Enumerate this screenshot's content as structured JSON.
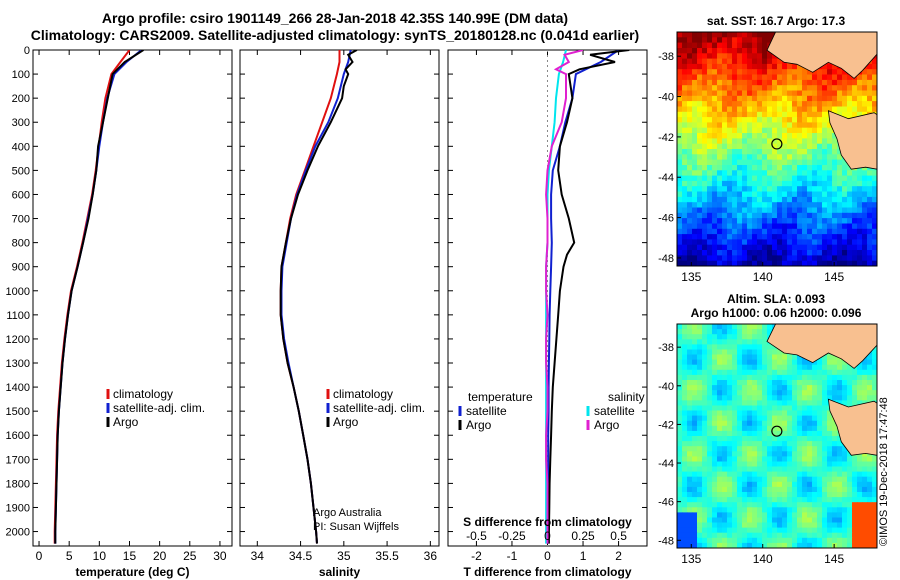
{
  "figure": {
    "title_line1": "Argo profile: csiro 1901149_266 28-Jan-2018 42.35S 140.99E (DM data)",
    "title_line2": "Climatology: CARS2009. Satellite-adjusted climatology: synTS_20180128.nc (0.041d earlier)",
    "sst_title": "sat. SST: 16.7 Argo: 17.3",
    "sla_title1": "Altim. SLA: 0.093",
    "sla_title2": "Argo h1000: 0.06 h2000: 0.096",
    "stamp": "©IMOS 19-Dec-2018 17:47:48",
    "credit_line1": "Argo Australia",
    "credit_line2": "PI: Susan Wijffels"
  },
  "colors": {
    "climatology": "#e01010",
    "satellite": "#1020d0",
    "argo": "#000000",
    "satellite_salinity": "#00e5ee",
    "argo_salinity": "#e020d0",
    "land": "#f8c090"
  },
  "chart_data": [
    {
      "type": "line",
      "name": "temperature_profile",
      "xlabel": "temperature (deg C)",
      "ylabel": "",
      "xlim": [
        -1,
        32
      ],
      "ylim": [
        2060,
        0
      ],
      "xticks": [
        0,
        5,
        10,
        15,
        20,
        25,
        30
      ],
      "yticks": [
        0,
        100,
        200,
        300,
        400,
        500,
        600,
        700,
        800,
        900,
        1000,
        1100,
        1200,
        1300,
        1400,
        1500,
        1600,
        1700,
        1800,
        1900,
        2000
      ],
      "legend": [
        "climatology",
        "satellite-adj. clim.",
        "Argo"
      ],
      "legend_position": "lower-middle",
      "series": [
        {
          "name": "climatology",
          "depth": [
            0,
            50,
            100,
            200,
            300,
            400,
            500,
            600,
            700,
            800,
            900,
            1000,
            1100,
            1200,
            1300,
            1400,
            1500,
            1600,
            1700,
            1800,
            1900,
            2000,
            2050
          ],
          "values": [
            15.0,
            13.5,
            12.0,
            11.0,
            10.4,
            9.9,
            9.4,
            8.8,
            8.0,
            7.2,
            6.3,
            5.3,
            4.7,
            4.2,
            3.8,
            3.5,
            3.2,
            3.0,
            2.9,
            2.8,
            2.7,
            2.6,
            2.6
          ]
        },
        {
          "name": "satellite-adj. clim.",
          "depth": [
            0,
            50,
            100,
            200,
            300,
            400,
            500,
            600,
            700,
            800,
            900,
            1000,
            1100,
            1200,
            1300,
            1400,
            1500,
            1600,
            1700,
            1800,
            1900,
            2000,
            2050
          ],
          "values": [
            17.0,
            14.5,
            12.5,
            11.3,
            10.6,
            10.0,
            9.5,
            8.9,
            8.1,
            7.3,
            6.4,
            5.4,
            4.8,
            4.3,
            3.9,
            3.6,
            3.3,
            3.1,
            3.0,
            2.9,
            2.8,
            2.7,
            2.7
          ]
        },
        {
          "name": "Argo",
          "depth": [
            0,
            50,
            100,
            200,
            300,
            400,
            500,
            600,
            700,
            800,
            900,
            1000,
            1100,
            1200,
            1300,
            1400,
            1500,
            1600,
            1700,
            1800,
            1900,
            2000,
            2050
          ],
          "values": [
            17.3,
            14.2,
            12.2,
            11.4,
            10.6,
            9.8,
            9.5,
            8.9,
            8.2,
            7.3,
            6.4,
            5.4,
            4.8,
            4.3,
            3.9,
            3.6,
            3.3,
            3.1,
            3.0,
            2.9,
            2.8,
            2.7,
            2.7
          ]
        }
      ]
    },
    {
      "type": "line",
      "name": "salinity_profile",
      "xlabel": "salinity",
      "ylabel": "",
      "xlim": [
        33.8,
        36.1
      ],
      "ylim": [
        2060,
        0
      ],
      "xticks": [
        34,
        34.5,
        35,
        35.5,
        36
      ],
      "legend": [
        "climatology",
        "satellite-adj. clim.",
        "Argo"
      ],
      "legend_position": "lower-middle",
      "series": [
        {
          "name": "climatology",
          "depth": [
            0,
            50,
            100,
            200,
            300,
            400,
            500,
            600,
            700,
            800,
            900,
            1000,
            1100,
            1200,
            1300,
            1400,
            1500,
            1600,
            1700,
            1800,
            1900,
            2000,
            2050
          ],
          "values": [
            34.95,
            34.95,
            34.92,
            34.85,
            34.75,
            34.65,
            34.55,
            34.45,
            34.38,
            34.33,
            34.28,
            34.27,
            34.27,
            34.3,
            34.35,
            34.42,
            34.48,
            34.53,
            34.58,
            34.62,
            34.65,
            34.68,
            34.69
          ]
        },
        {
          "name": "satellite-adj. clim.",
          "depth": [
            0,
            50,
            100,
            200,
            300,
            400,
            500,
            600,
            700,
            800,
            900,
            1000,
            1100,
            1200,
            1300,
            1400,
            1500,
            1600,
            1700,
            1800,
            1900,
            2000,
            2050
          ],
          "values": [
            35.08,
            35.05,
            35.0,
            34.93,
            34.82,
            34.67,
            34.56,
            34.46,
            34.39,
            34.34,
            34.29,
            34.28,
            34.28,
            34.31,
            34.36,
            34.42,
            34.48,
            34.53,
            34.58,
            34.62,
            34.65,
            34.68,
            34.69
          ]
        },
        {
          "name": "Argo",
          "depth": [
            0,
            20,
            50,
            80,
            100,
            150,
            200,
            300,
            400,
            500,
            600,
            700,
            800,
            900,
            1000,
            1100,
            1200,
            1300,
            1400,
            1500,
            1600,
            1700,
            1800,
            1900,
            2000,
            2050
          ],
          "values": [
            35.15,
            35.05,
            35.1,
            35.02,
            35.05,
            35.0,
            34.98,
            34.85,
            34.7,
            34.58,
            34.47,
            34.39,
            34.33,
            34.28,
            34.27,
            34.27,
            34.3,
            34.35,
            34.42,
            34.48,
            34.53,
            34.58,
            34.62,
            34.65,
            34.68,
            34.69
          ]
        }
      ]
    },
    {
      "type": "line",
      "name": "difference_profile",
      "xlabel": "T difference from climatology",
      "xlabel_top": "S difference from climatology",
      "xlim": [
        -2.8,
        2.8
      ],
      "ylim": [
        2060,
        0
      ],
      "xticks": [
        -2,
        -1,
        0,
        1,
        2
      ],
      "xticks_top": [
        "-0.5",
        "-0.25",
        "0",
        "0.25",
        "0.5"
      ],
      "legend_left_title": "temperature",
      "legend_left": [
        "satellite",
        "Argo"
      ],
      "legend_right_title": "salinity",
      "legend_right": [
        "satellite",
        "Argo"
      ],
      "series": [
        {
          "name": "T satellite",
          "depth": [
            0,
            50,
            100,
            200,
            300,
            400,
            500,
            600,
            700,
            800,
            900,
            1000,
            1100,
            1200,
            1300,
            1400,
            1500,
            1600,
            1700,
            1800,
            1900,
            2000,
            2050
          ],
          "values": [
            2.0,
            1.5,
            0.8,
            0.7,
            0.5,
            0.35,
            0.15,
            0.1,
            0.1,
            0.12,
            0.1,
            0.08,
            0.06,
            0.05,
            0.04,
            0.03,
            0.03,
            0.02,
            0.02,
            0.02,
            0.01,
            0.01,
            0.01
          ]
        },
        {
          "name": "T Argo",
          "depth": [
            0,
            20,
            50,
            80,
            100,
            200,
            300,
            400,
            500,
            600,
            700,
            800,
            850,
            900,
            1000,
            1100,
            1200,
            1300,
            1400,
            1500,
            1600,
            1700,
            1800,
            1900,
            2000,
            2050
          ],
          "values": [
            2.3,
            1.2,
            1.9,
            0.9,
            0.6,
            0.7,
            0.55,
            0.35,
            0.3,
            0.4,
            0.6,
            0.75,
            0.55,
            0.45,
            0.35,
            0.3,
            0.25,
            0.2,
            0.15,
            0.12,
            0.1,
            0.08,
            0.06,
            0.05,
            0.04,
            0.04
          ]
        },
        {
          "name": "S satellite",
          "depth": [
            0,
            50,
            100,
            200,
            300,
            400,
            500,
            600,
            700,
            800,
            900,
            1000,
            1100,
            1200,
            1300,
            1400,
            1500,
            1600,
            1700,
            1800,
            1900,
            2000,
            2050
          ],
          "values": [
            0.13,
            0.11,
            0.08,
            0.06,
            0.05,
            0.03,
            0.01,
            0.0,
            0.0,
            0.0,
            -0.01,
            -0.01,
            -0.01,
            -0.01,
            -0.01,
            -0.01,
            -0.01,
            -0.01,
            -0.01,
            -0.01,
            -0.01,
            -0.01,
            -0.01
          ]
        },
        {
          "name": "S Argo",
          "depth": [
            0,
            20,
            50,
            80,
            100,
            200,
            300,
            400,
            500,
            600,
            700,
            800,
            900,
            1000,
            1100,
            1200,
            1300,
            1400,
            1500,
            1600,
            1700,
            1800,
            1900,
            2000,
            2050
          ],
          "values": [
            0.25,
            0.12,
            0.15,
            0.06,
            0.13,
            0.13,
            0.1,
            0.03,
            0.0,
            -0.01,
            0.0,
            0.0,
            -0.01,
            -0.01,
            0.0,
            -0.01,
            -0.01,
            0.0,
            0.0,
            -0.01,
            -0.01,
            0.0,
            0.0,
            0.0,
            0.0
          ]
        }
      ]
    },
    {
      "type": "heatmap",
      "name": "sst_map",
      "xlim": [
        134,
        148
      ],
      "ylim": [
        -48.4,
        -36.8
      ],
      "xticks": [
        135,
        140,
        145
      ],
      "yticks": [
        -38,
        -40,
        -42,
        -44,
        -46,
        -48
      ],
      "argo_position": {
        "lon": 140.99,
        "lat": -42.35
      }
    },
    {
      "type": "heatmap",
      "name": "sla_map",
      "xlim": [
        134,
        148
      ],
      "ylim": [
        -48.4,
        -36.8
      ],
      "xticks": [
        135,
        140,
        145
      ],
      "yticks": [
        -38,
        -40,
        -42,
        -44,
        -46,
        -48
      ],
      "argo_position": {
        "lon": 140.99,
        "lat": -42.35
      }
    }
  ]
}
